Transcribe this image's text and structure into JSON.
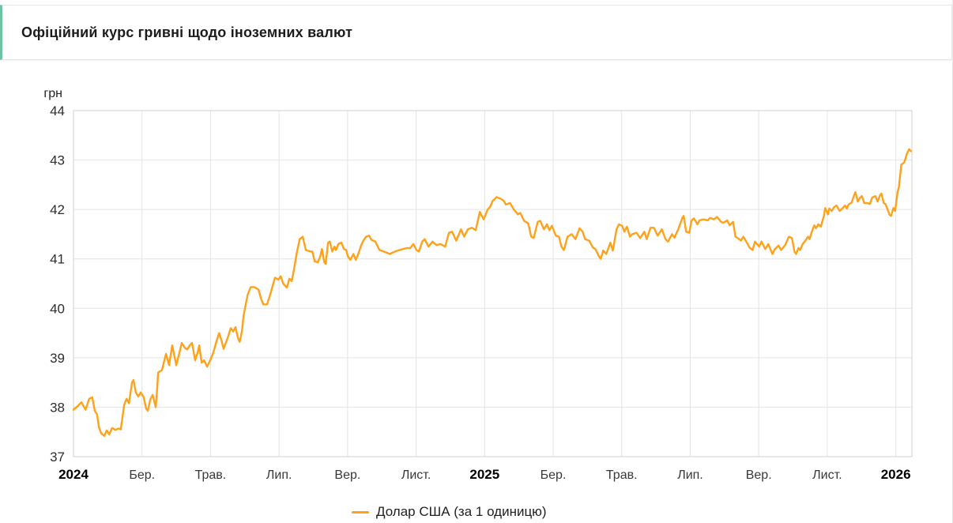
{
  "header": {
    "title": "Офіційний курс гривні щодо іноземних валют"
  },
  "chart_data": {
    "type": "line",
    "title": "Офіційний курс гривні щодо іноземних валют",
    "ylabel": "грн",
    "ylim": [
      37,
      44
    ],
    "y_ticks": [
      37,
      38,
      39,
      40,
      41,
      42,
      43,
      44
    ],
    "x_unit": "months since 2024-01-01",
    "xlim": [
      0,
      24.47
    ],
    "x_ticks": [
      {
        "m": 0,
        "label": "2024",
        "bold": true
      },
      {
        "m": 2,
        "label": "Бер."
      },
      {
        "m": 4,
        "label": "Трав."
      },
      {
        "m": 6,
        "label": "Лип."
      },
      {
        "m": 8,
        "label": "Вер."
      },
      {
        "m": 10,
        "label": "Лист."
      },
      {
        "m": 12,
        "label": "2025",
        "bold": true
      },
      {
        "m": 14,
        "label": "Бер."
      },
      {
        "m": 16,
        "label": "Трав."
      },
      {
        "m": 18,
        "label": "Лип."
      },
      {
        "m": 20,
        "label": "Вер."
      },
      {
        "m": 22,
        "label": "Лист."
      },
      {
        "m": 24,
        "label": "2026",
        "bold": true
      }
    ],
    "grid": true,
    "legend_position": "bottom",
    "grid_color": "#e4e4e4",
    "frame_color": "#cfcfcf",
    "series": [
      {
        "name": "Долар США (за 1 одиницю)",
        "color": "#ffa119",
        "points": [
          [
            0.0,
            37.95
          ],
          [
            0.12,
            38.02
          ],
          [
            0.23,
            38.1
          ],
          [
            0.35,
            37.95
          ],
          [
            0.46,
            38.17
          ],
          [
            0.55,
            38.2
          ],
          [
            0.62,
            37.93
          ],
          [
            0.69,
            37.85
          ],
          [
            0.74,
            37.6
          ],
          [
            0.81,
            37.47
          ],
          [
            0.9,
            37.42
          ],
          [
            0.97,
            37.53
          ],
          [
            1.04,
            37.45
          ],
          [
            1.13,
            37.58
          ],
          [
            1.22,
            37.54
          ],
          [
            1.32,
            37.57
          ],
          [
            1.38,
            37.55
          ],
          [
            1.48,
            38.05
          ],
          [
            1.55,
            38.17
          ],
          [
            1.62,
            38.08
          ],
          [
            1.71,
            38.5
          ],
          [
            1.75,
            38.55
          ],
          [
            1.82,
            38.3
          ],
          [
            1.89,
            38.22
          ],
          [
            1.96,
            38.3
          ],
          [
            2.05,
            38.2
          ],
          [
            2.12,
            37.97
          ],
          [
            2.17,
            37.93
          ],
          [
            2.24,
            38.15
          ],
          [
            2.31,
            38.25
          ],
          [
            2.4,
            38.0
          ],
          [
            2.44,
            38.35
          ],
          [
            2.47,
            38.7
          ],
          [
            2.58,
            38.75
          ],
          [
            2.7,
            39.08
          ],
          [
            2.79,
            38.85
          ],
          [
            2.88,
            39.25
          ],
          [
            3.0,
            38.85
          ],
          [
            3.09,
            39.1
          ],
          [
            3.16,
            39.3
          ],
          [
            3.25,
            39.2
          ],
          [
            3.32,
            39.17
          ],
          [
            3.39,
            39.25
          ],
          [
            3.46,
            39.3
          ],
          [
            3.55,
            38.95
          ],
          [
            3.62,
            39.1
          ],
          [
            3.67,
            39.25
          ],
          [
            3.74,
            38.9
          ],
          [
            3.81,
            38.95
          ],
          [
            3.9,
            38.82
          ],
          [
            3.99,
            38.95
          ],
          [
            4.08,
            39.1
          ],
          [
            4.18,
            39.35
          ],
          [
            4.25,
            39.5
          ],
          [
            4.32,
            39.35
          ],
          [
            4.38,
            39.18
          ],
          [
            4.5,
            39.4
          ],
          [
            4.59,
            39.6
          ],
          [
            4.66,
            39.53
          ],
          [
            4.73,
            39.62
          ],
          [
            4.8,
            39.4
          ],
          [
            4.85,
            39.32
          ],
          [
            4.92,
            39.55
          ],
          [
            4.96,
            39.84
          ],
          [
            5.08,
            40.27
          ],
          [
            5.17,
            40.43
          ],
          [
            5.28,
            40.43
          ],
          [
            5.4,
            40.38
          ],
          [
            5.47,
            40.2
          ],
          [
            5.54,
            40.08
          ],
          [
            5.65,
            40.08
          ],
          [
            5.75,
            40.3
          ],
          [
            5.82,
            40.48
          ],
          [
            5.88,
            40.62
          ],
          [
            5.98,
            40.58
          ],
          [
            6.05,
            40.65
          ],
          [
            6.12,
            40.5
          ],
          [
            6.23,
            40.42
          ],
          [
            6.3,
            40.6
          ],
          [
            6.37,
            40.55
          ],
          [
            6.44,
            40.8
          ],
          [
            6.51,
            41.1
          ],
          [
            6.6,
            41.4
          ],
          [
            6.69,
            41.45
          ],
          [
            6.78,
            41.18
          ],
          [
            6.9,
            41.15
          ],
          [
            6.97,
            41.15
          ],
          [
            7.04,
            40.95
          ],
          [
            7.13,
            40.93
          ],
          [
            7.2,
            41.05
          ],
          [
            7.25,
            41.2
          ],
          [
            7.32,
            40.93
          ],
          [
            7.36,
            40.9
          ],
          [
            7.43,
            41.33
          ],
          [
            7.48,
            41.35
          ],
          [
            7.55,
            41.15
          ],
          [
            7.62,
            41.25
          ],
          [
            7.66,
            41.18
          ],
          [
            7.73,
            41.3
          ],
          [
            7.82,
            41.33
          ],
          [
            7.89,
            41.2
          ],
          [
            7.96,
            41.18
          ],
          [
            8.01,
            41.05
          ],
          [
            8.08,
            40.98
          ],
          [
            8.17,
            41.1
          ],
          [
            8.24,
            40.98
          ],
          [
            8.31,
            41.1
          ],
          [
            8.4,
            41.28
          ],
          [
            8.47,
            41.38
          ],
          [
            8.54,
            41.45
          ],
          [
            8.63,
            41.47
          ],
          [
            8.7,
            41.38
          ],
          [
            8.81,
            41.35
          ],
          [
            8.93,
            41.18
          ],
          [
            9.05,
            41.15
          ],
          [
            9.16,
            41.12
          ],
          [
            9.23,
            41.1
          ],
          [
            9.32,
            41.13
          ],
          [
            9.39,
            41.15
          ],
          [
            9.51,
            41.18
          ],
          [
            9.62,
            41.2
          ],
          [
            9.74,
            41.22
          ],
          [
            9.83,
            41.22
          ],
          [
            9.92,
            41.3
          ],
          [
            10.01,
            41.18
          ],
          [
            10.08,
            41.15
          ],
          [
            10.18,
            41.35
          ],
          [
            10.25,
            41.4
          ],
          [
            10.36,
            41.25
          ],
          [
            10.48,
            41.35
          ],
          [
            10.59,
            41.28
          ],
          [
            10.71,
            41.3
          ],
          [
            10.85,
            41.25
          ],
          [
            10.96,
            41.53
          ],
          [
            11.05,
            41.55
          ],
          [
            11.17,
            41.37
          ],
          [
            11.31,
            41.6
          ],
          [
            11.4,
            41.45
          ],
          [
            11.51,
            41.6
          ],
          [
            11.63,
            41.63
          ],
          [
            11.74,
            41.58
          ],
          [
            11.86,
            41.95
          ],
          [
            11.97,
            41.8
          ],
          [
            12.09,
            42.0
          ],
          [
            12.16,
            42.05
          ],
          [
            12.23,
            42.17
          ],
          [
            12.35,
            42.25
          ],
          [
            12.46,
            42.22
          ],
          [
            12.55,
            42.18
          ],
          [
            12.62,
            42.1
          ],
          [
            12.74,
            42.13
          ],
          [
            12.85,
            42.0
          ],
          [
            12.97,
            41.9
          ],
          [
            13.04,
            41.93
          ],
          [
            13.15,
            41.77
          ],
          [
            13.27,
            41.72
          ],
          [
            13.36,
            41.45
          ],
          [
            13.43,
            41.42
          ],
          [
            13.55,
            41.75
          ],
          [
            13.62,
            41.77
          ],
          [
            13.73,
            41.6
          ],
          [
            13.82,
            41.7
          ],
          [
            13.89,
            41.58
          ],
          [
            13.96,
            41.67
          ],
          [
            14.08,
            41.47
          ],
          [
            14.17,
            41.45
          ],
          [
            14.24,
            41.25
          ],
          [
            14.31,
            41.18
          ],
          [
            14.42,
            41.45
          ],
          [
            14.54,
            41.5
          ],
          [
            14.65,
            41.4
          ],
          [
            14.77,
            41.62
          ],
          [
            14.86,
            41.55
          ],
          [
            14.93,
            41.4
          ],
          [
            15.05,
            41.37
          ],
          [
            15.16,
            41.23
          ],
          [
            15.23,
            41.2
          ],
          [
            15.34,
            41.05
          ],
          [
            15.39,
            41.0
          ],
          [
            15.46,
            41.17
          ],
          [
            15.55,
            41.1
          ],
          [
            15.67,
            41.33
          ],
          [
            15.74,
            41.17
          ],
          [
            15.85,
            41.6
          ],
          [
            15.92,
            41.7
          ],
          [
            16.01,
            41.67
          ],
          [
            16.08,
            41.55
          ],
          [
            16.15,
            41.65
          ],
          [
            16.24,
            41.45
          ],
          [
            16.31,
            41.5
          ],
          [
            16.43,
            41.53
          ],
          [
            16.54,
            41.42
          ],
          [
            16.66,
            41.55
          ],
          [
            16.73,
            41.4
          ],
          [
            16.84,
            41.63
          ],
          [
            16.94,
            41.63
          ],
          [
            17.05,
            41.47
          ],
          [
            17.17,
            41.6
          ],
          [
            17.28,
            41.4
          ],
          [
            17.35,
            41.35
          ],
          [
            17.47,
            41.5
          ],
          [
            17.54,
            41.43
          ],
          [
            17.65,
            41.6
          ],
          [
            17.77,
            41.83
          ],
          [
            17.81,
            41.87
          ],
          [
            17.88,
            41.55
          ],
          [
            17.97,
            41.53
          ],
          [
            18.04,
            41.78
          ],
          [
            18.11,
            41.82
          ],
          [
            18.21,
            41.7
          ],
          [
            18.27,
            41.78
          ],
          [
            18.39,
            41.8
          ],
          [
            18.51,
            41.78
          ],
          [
            18.58,
            41.83
          ],
          [
            18.69,
            41.8
          ],
          [
            18.78,
            41.85
          ],
          [
            18.9,
            41.75
          ],
          [
            18.97,
            41.73
          ],
          [
            19.08,
            41.78
          ],
          [
            19.15,
            41.68
          ],
          [
            19.25,
            41.75
          ],
          [
            19.32,
            41.45
          ],
          [
            19.39,
            41.42
          ],
          [
            19.48,
            41.37
          ],
          [
            19.55,
            41.45
          ],
          [
            19.62,
            41.37
          ],
          [
            19.73,
            41.23
          ],
          [
            19.82,
            41.18
          ],
          [
            19.89,
            41.35
          ],
          [
            20.01,
            41.25
          ],
          [
            20.08,
            41.35
          ],
          [
            20.19,
            41.2
          ],
          [
            20.28,
            41.3
          ],
          [
            20.4,
            41.1
          ],
          [
            20.47,
            41.2
          ],
          [
            20.58,
            41.27
          ],
          [
            20.65,
            41.18
          ],
          [
            20.77,
            41.28
          ],
          [
            20.88,
            41.45
          ],
          [
            20.97,
            41.42
          ],
          [
            21.04,
            41.15
          ],
          [
            21.09,
            41.1
          ],
          [
            21.16,
            41.22
          ],
          [
            21.21,
            41.18
          ],
          [
            21.28,
            41.3
          ],
          [
            21.34,
            41.35
          ],
          [
            21.44,
            41.45
          ],
          [
            21.48,
            41.4
          ],
          [
            21.55,
            41.55
          ],
          [
            21.62,
            41.68
          ],
          [
            21.67,
            41.62
          ],
          [
            21.74,
            41.7
          ],
          [
            21.81,
            41.65
          ],
          [
            21.9,
            41.87
          ],
          [
            21.94,
            42.03
          ],
          [
            22.02,
            41.9
          ],
          [
            22.06,
            42.02
          ],
          [
            22.13,
            41.97
          ],
          [
            22.2,
            42.05
          ],
          [
            22.27,
            42.08
          ],
          [
            22.36,
            41.97
          ],
          [
            22.48,
            42.05
          ],
          [
            22.52,
            42.08
          ],
          [
            22.57,
            42.02
          ],
          [
            22.62,
            42.1
          ],
          [
            22.71,
            42.14
          ],
          [
            22.78,
            42.28
          ],
          [
            22.82,
            42.35
          ],
          [
            22.89,
            42.16
          ],
          [
            22.96,
            42.24
          ],
          [
            23.01,
            42.27
          ],
          [
            23.08,
            42.13
          ],
          [
            23.17,
            42.13
          ],
          [
            23.24,
            42.11
          ],
          [
            23.31,
            42.24
          ],
          [
            23.4,
            42.27
          ],
          [
            23.47,
            42.16
          ],
          [
            23.54,
            42.29
          ],
          [
            23.58,
            42.32
          ],
          [
            23.65,
            42.13
          ],
          [
            23.7,
            42.11
          ],
          [
            23.82,
            41.89
          ],
          [
            23.86,
            41.87
          ],
          [
            23.93,
            42.03
          ],
          [
            23.98,
            41.97
          ],
          [
            24.05,
            42.35
          ],
          [
            24.09,
            42.45
          ],
          [
            24.16,
            42.91
          ],
          [
            24.21,
            42.93
          ],
          [
            24.25,
            42.96
          ],
          [
            24.32,
            43.12
          ],
          [
            24.39,
            43.22
          ],
          [
            24.44,
            43.18
          ]
        ]
      }
    ]
  }
}
